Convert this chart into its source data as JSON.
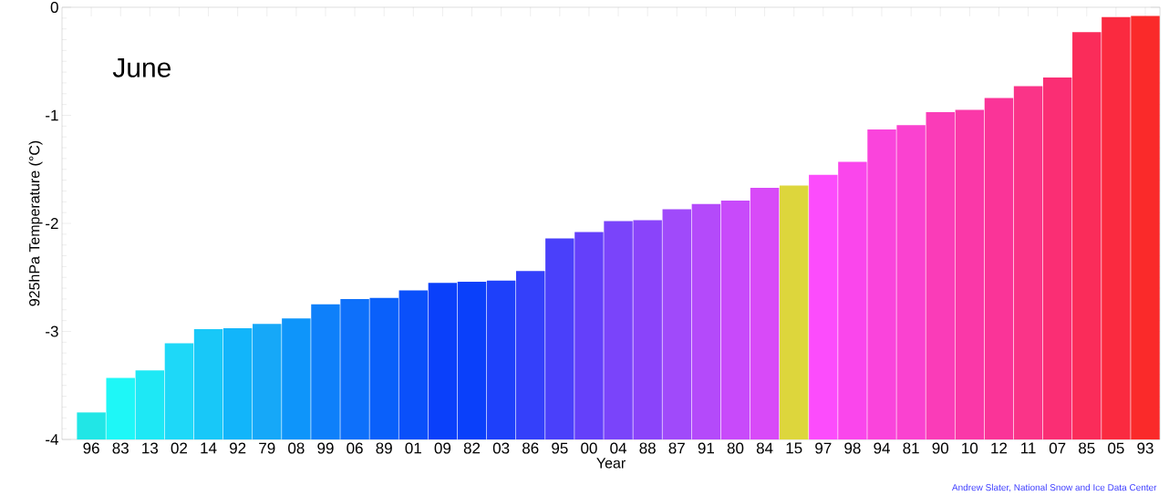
{
  "chart_data": {
    "type": "bar",
    "xlabel": "Year",
    "ylabel": "925hPa Temperature (°C)",
    "categories": [
      "96",
      "83",
      "13",
      "02",
      "14",
      "92",
      "79",
      "08",
      "99",
      "06",
      "89",
      "01",
      "09",
      "82",
      "03",
      "86",
      "95",
      "00",
      "04",
      "88",
      "87",
      "91",
      "80",
      "84",
      "15",
      "97",
      "98",
      "94",
      "81",
      "90",
      "10",
      "12",
      "11",
      "07",
      "85",
      "05",
      "93"
    ],
    "base": [
      -4,
      -4,
      -4,
      -4,
      -4,
      -4,
      -4,
      -4,
      -4,
      -4,
      -4,
      -4,
      -4,
      -4,
      -4,
      -4,
      -4,
      -4,
      -4,
      -4,
      -4,
      -4,
      -4,
      -4,
      -4,
      -4,
      -4,
      -4,
      -4,
      -4,
      -4,
      -4,
      -4,
      -4,
      -4,
      -4,
      -4
    ],
    "values": [
      0.25,
      0.57,
      0.64,
      0.89,
      1.02,
      1.03,
      1.07,
      1.12,
      1.25,
      1.3,
      1.31,
      1.38,
      1.45,
      1.46,
      1.47,
      1.56,
      1.86,
      1.92,
      2.02,
      2.03,
      2.13,
      2.18,
      2.21,
      2.33,
      2.35,
      2.45,
      2.57,
      2.87,
      2.91,
      3.03,
      3.05,
      3.16,
      3.27,
      3.35,
      3.77,
      3.91,
      3.92
    ],
    "colors": [
      "#21e6e6",
      "#1ef7f7",
      "#1ee8f5",
      "#1ed8f8",
      "#18c8f8",
      "#12b5fa",
      "#16a8f8",
      "#0e95fa",
      "#0e80fa",
      "#0e70fa",
      "#0a60fa",
      "#0a50fa",
      "#0a40fa",
      "#0a40fa",
      "#1e40fa",
      "#3440fa",
      "#4a40fa",
      "#6440fa",
      "#7a44fa",
      "#8a44fa",
      "#a04afa",
      "#b44afa",
      "#c84afa",
      "#d84af8",
      "#ddd63c",
      "#fc4cfc",
      "#fa46ec",
      "#fa44dc",
      "#fa42d0",
      "#fa3cb8",
      "#fa38a8",
      "#fa3498",
      "#fa3488",
      "#fa2e74",
      "#fa2c5a",
      "#fa2a40",
      "#fa2a2a"
    ],
    "ylim": [
      -4,
      0
    ],
    "yticks": [
      -4,
      -3,
      -2,
      -1,
      0
    ],
    "annotations": [
      "June",
      "Andrew Slater, National Snow and Ice Data Center"
    ]
  }
}
